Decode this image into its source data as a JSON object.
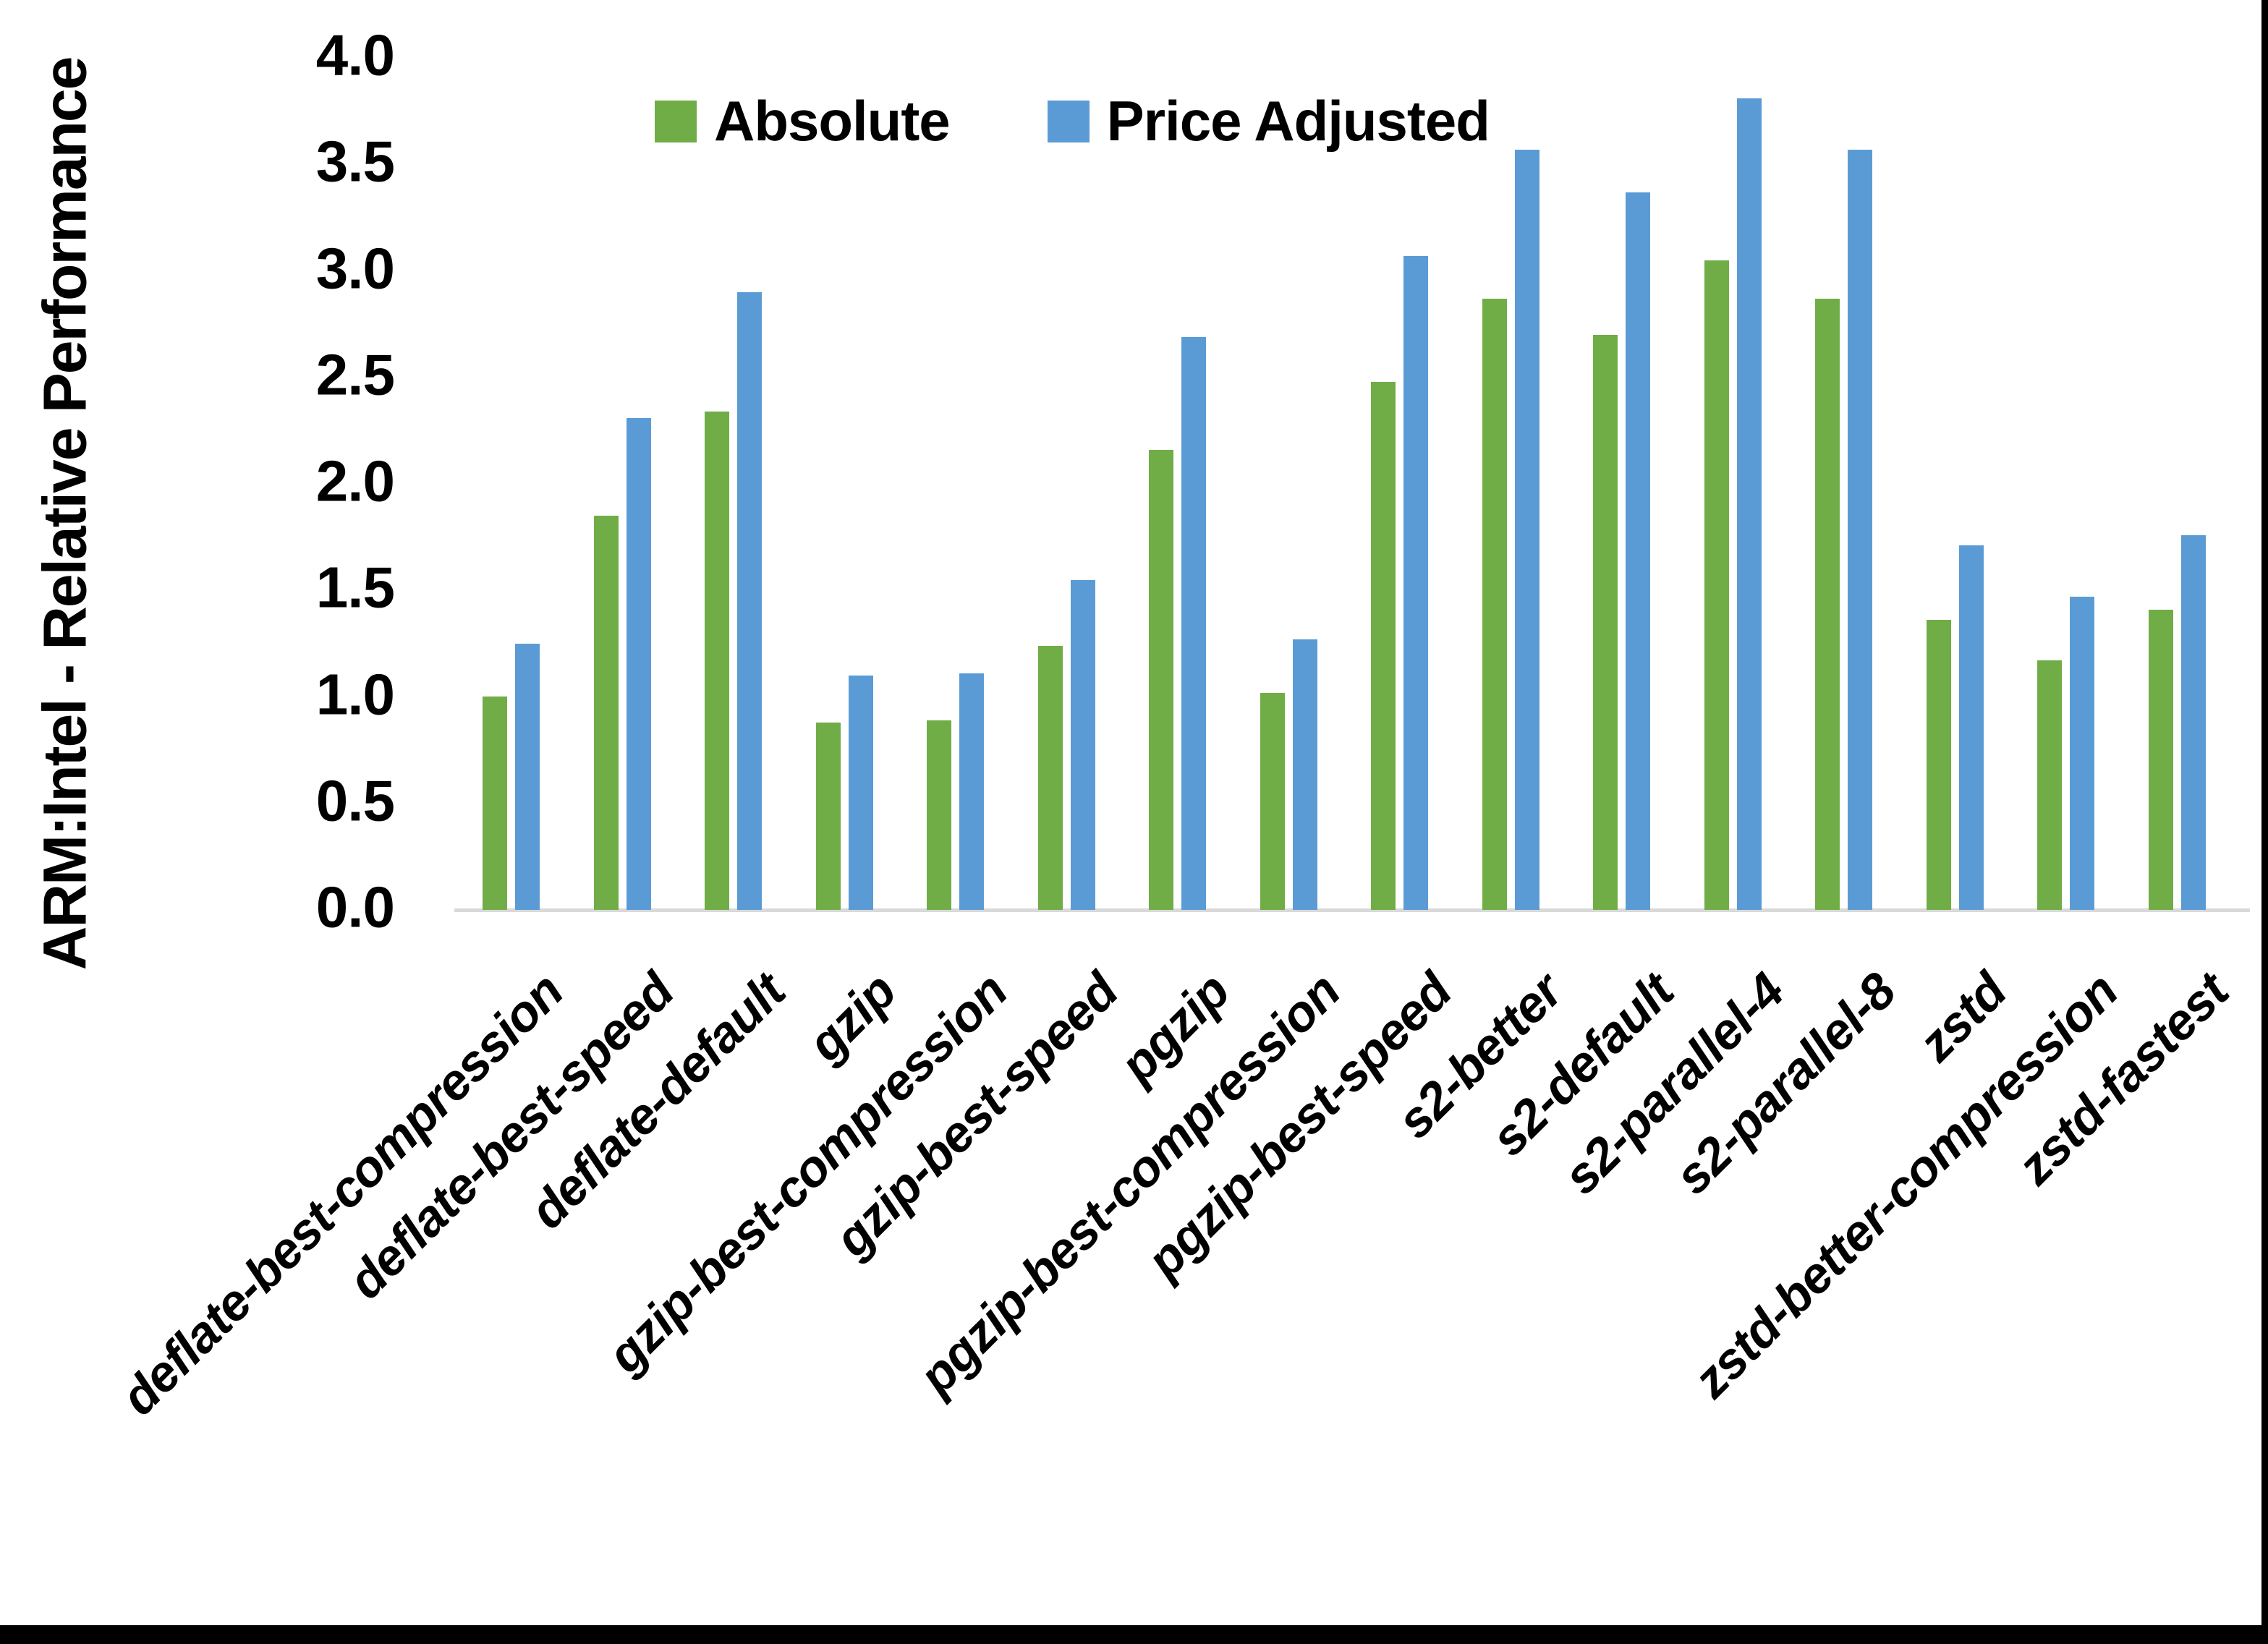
{
  "chart_data": {
    "type": "bar",
    "title": "",
    "ylabel": "ARM:Intel - Relative Performance",
    "xlabel": "",
    "ylim": [
      0.0,
      4.0
    ],
    "ytick_step": 0.5,
    "yticks": [
      "0.0",
      "0.5",
      "1.0",
      "1.5",
      "2.0",
      "2.5",
      "3.0",
      "3.5",
      "4.0"
    ],
    "grid": false,
    "legend_position": "top-center",
    "categories": [
      "deflate-best-compression",
      "deflate-best-speed",
      "deflate-default",
      "gzip",
      "gzip-best-compression",
      "gzip-best-speed",
      "pgzip",
      "pgzip-best-compression",
      "pgzip-best-speed",
      "s2-better",
      "s2-default",
      "s2-parallel-4",
      "s2-parallel-8",
      "zstd",
      "zstd-better-compression",
      "zstd-fastest"
    ],
    "series": [
      {
        "name": "Absolute",
        "color": "#70AD47",
        "values": [
          1.0,
          1.85,
          2.34,
          0.88,
          0.89,
          1.24,
          2.16,
          1.02,
          2.48,
          2.87,
          2.7,
          3.05,
          2.87,
          1.36,
          1.17,
          1.41
        ]
      },
      {
        "name": "Price Adjusted",
        "color": "#5B9BD5",
        "values": [
          1.25,
          2.31,
          2.9,
          1.1,
          1.11,
          1.55,
          2.69,
          1.27,
          3.07,
          3.57,
          3.37,
          3.81,
          3.57,
          1.71,
          1.47,
          1.76
        ]
      }
    ],
    "axis_line_color": "#D9D9D9",
    "text_color": "#000000",
    "background_color": "#FFFFFF",
    "border_color": "#000000"
  }
}
